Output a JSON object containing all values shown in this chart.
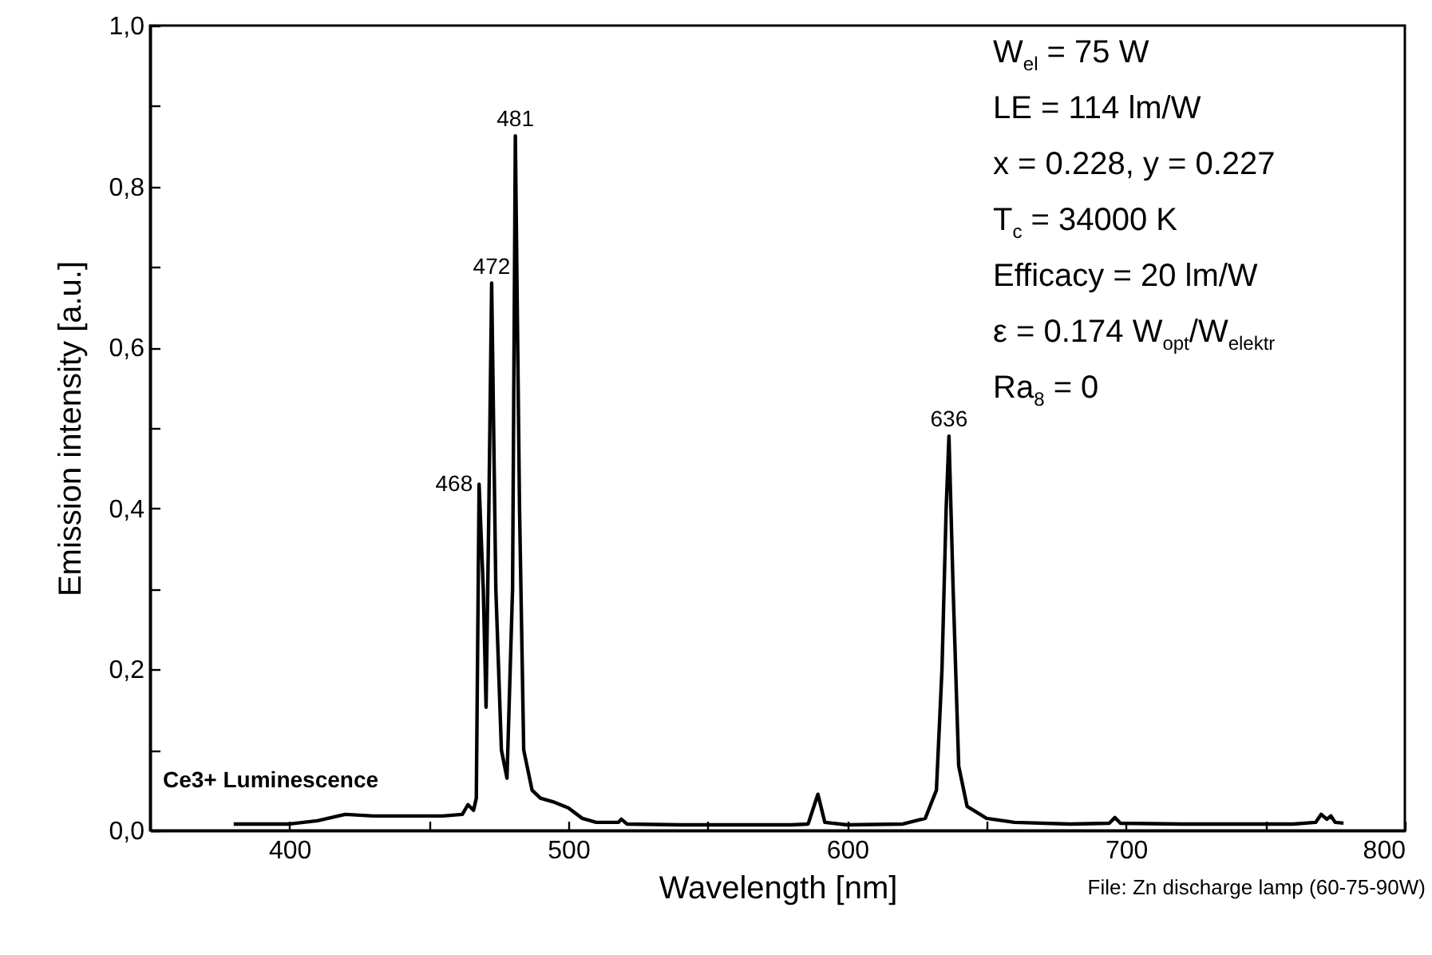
{
  "chart_data": {
    "type": "line",
    "xlabel": "Wavelength [nm]",
    "ylabel": "Emission intensity [a.u.]",
    "xlim": [
      350,
      800
    ],
    "ylim": [
      0,
      1
    ],
    "xticks": [
      400,
      {
        "value": 450,
        "label": null
      },
      500,
      {
        "value": 550,
        "label": null
      },
      600,
      {
        "value": 650,
        "label": null
      },
      700,
      {
        "value": 750,
        "label": null
      },
      800
    ],
    "yticks": [
      {
        "value": 0,
        "label": "0,0"
      },
      {
        "value": 0.1,
        "label": null
      },
      {
        "value": 0.2,
        "label": "0,2"
      },
      {
        "value": 0.3,
        "label": null
      },
      {
        "value": 0.4,
        "label": "0,4"
      },
      {
        "value": 0.5,
        "label": null
      },
      {
        "value": 0.6,
        "label": "0,6"
      },
      {
        "value": 0.7,
        "label": null
      },
      {
        "value": 0.8,
        "label": "0,8"
      },
      {
        "value": 0.9,
        "label": null
      },
      {
        "value": 1,
        "label": "1,0"
      }
    ],
    "grid": false,
    "series": [
      {
        "color": "#000000",
        "x": [
          380,
          400,
          410,
          420,
          430,
          440,
          455,
          462,
          464,
          466,
          467,
          468,
          469.5,
          470.5,
          471.5,
          472.5,
          474,
          476,
          478,
          480,
          481,
          482.5,
          484,
          487,
          490,
          495,
          500,
          505,
          510,
          518,
          519,
          521,
          540,
          560,
          580,
          586,
          589.5,
          592,
          600,
          620,
          628,
          632,
          634,
          635.5,
          636.5,
          638,
          640,
          643,
          650,
          660,
          680,
          694,
          696,
          698,
          720,
          760,
          768,
          770,
          772,
          773.5,
          775,
          778
        ],
        "values": [
          0.008,
          0.008,
          0.012,
          0.02,
          0.018,
          0.018,
          0.018,
          0.02,
          0.032,
          0.025,
          0.04,
          0.43,
          0.3,
          0.153,
          0.4,
          0.68,
          0.3,
          0.1,
          0.065,
          0.3,
          0.863,
          0.4,
          0.1,
          0.05,
          0.04,
          0.035,
          0.028,
          0.015,
          0.01,
          0.01,
          0.014,
          0.008,
          0.007,
          0.007,
          0.007,
          0.008,
          0.045,
          0.01,
          0.007,
          0.008,
          0.015,
          0.05,
          0.2,
          0.4,
          0.49,
          0.3,
          0.08,
          0.03,
          0.015,
          0.01,
          0.008,
          0.009,
          0.016,
          0.009,
          0.008,
          0.008,
          0.01,
          0.02,
          0.014,
          0.018,
          0.01,
          0.009
        ]
      }
    ],
    "annotations": [
      {
        "text": "468",
        "x": 468,
        "y": 0.43
      },
      {
        "text": "472",
        "x": 472.5,
        "y": 0.68
      },
      {
        "text": "481",
        "x": 481,
        "y": 0.863
      },
      {
        "text": "636",
        "x": 636.5,
        "y": 0.49
      },
      "W$_{el}$ = 75 W",
      "LE = 114 lm/W",
      "x = 0.228, y = 0.227",
      "T$_{c}$ = 34000 K",
      "Efficacy = 20 lm/W",
      "ε = 0.174 W$_{opt}$/W$_{elektr}$",
      "Ra$_{8}$ = 0",
      "Ce3+ Luminescence",
      "File: Zn discharge lamp (60-75-90W)"
    ]
  }
}
